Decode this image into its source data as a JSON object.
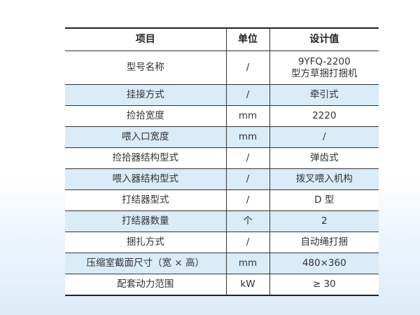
{
  "table": {
    "headers": [
      "项目",
      "单位",
      "设计值"
    ],
    "rows": [
      {
        "item": "型号名称",
        "unit": "/",
        "value": "9YFQ-2200",
        "value2": "型方草捆打捆机"
      },
      {
        "item": "挂接方式",
        "unit": "/",
        "value": "牵引式"
      },
      {
        "item": "捡拾宽度",
        "unit": "mm",
        "value": "2220"
      },
      {
        "item": "喂入口宽度",
        "unit": "mm",
        "value": "/"
      },
      {
        "item": "捡拾器结构型式",
        "unit": "/",
        "value": "弹齿式"
      },
      {
        "item": "喂入器结构型式",
        "unit": "/",
        "value": "拨叉喂入机构"
      },
      {
        "item": "打结器型式",
        "unit": "/",
        "value": "D 型"
      },
      {
        "item": "打结器数量",
        "unit": "个",
        "value": "2"
      },
      {
        "item": "捆扎方式",
        "unit": "/",
        "value": "自动绳打捆"
      },
      {
        "item": "压缩室截面尺寸（宽 × 高）",
        "unit": "mm",
        "value": "480×360"
      },
      {
        "item": "配套动力范围",
        "unit": "kW",
        "value": "≥ 30"
      }
    ]
  }
}
